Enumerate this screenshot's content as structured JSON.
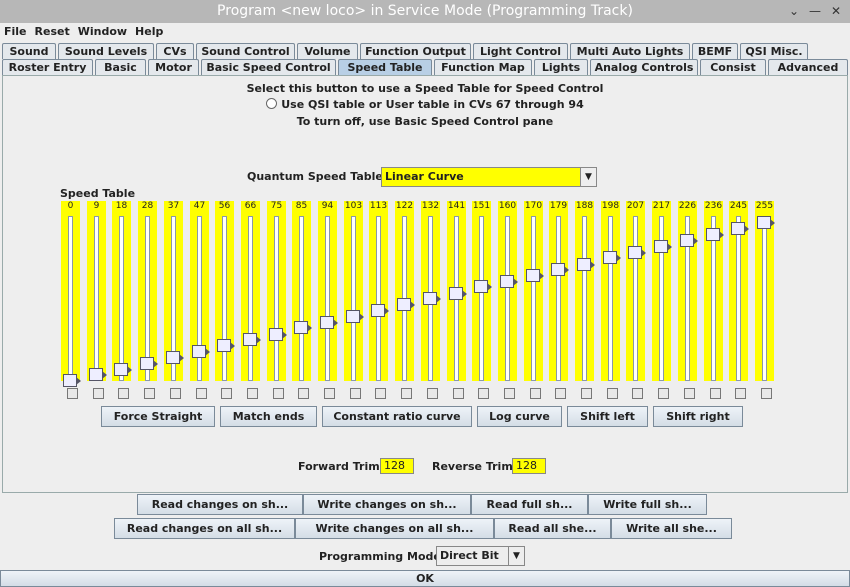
{
  "window": {
    "title": "Program <new loco> in Service Mode (Programming Track)"
  },
  "menu": [
    "File",
    "Reset",
    "Window",
    "Help"
  ],
  "tabs_row1": [
    "Sound",
    "Sound Levels",
    "CVs",
    "Sound Control",
    "Volume",
    "Function Output",
    "Light Control",
    "Multi Auto Lights",
    "BEMF",
    "QSI Misc."
  ],
  "tabs_row2": [
    "Roster Entry",
    "Basic",
    "Motor",
    "Basic Speed Control",
    "Speed Table",
    "Function Map",
    "Lights",
    "Analog Controls",
    "Consist",
    "Advanced"
  ],
  "speed_pane": {
    "instruction": "Select this button to use a Speed Table for Speed Control",
    "radio_label": "Use QSI table or User table in CVs 67 through 94",
    "turn_off_note": "To turn off, use Basic Speed Control pane",
    "quantum_label": "Quantum Speed Table",
    "quantum_value": "Linear Curve",
    "speed_table_label": "Speed Table",
    "values": [
      0,
      9,
      18,
      28,
      37,
      47,
      56,
      66,
      75,
      85,
      94,
      103,
      113,
      122,
      132,
      141,
      151,
      160,
      170,
      179,
      188,
      198,
      207,
      217,
      226,
      236,
      245,
      255
    ],
    "buttons": {
      "force_straight": "Force Straight",
      "match_ends": "Match ends",
      "constant_ratio": "Constant ratio curve",
      "log_curve": "Log curve",
      "shift_left": "Shift left",
      "shift_right": "Shift right"
    },
    "forward_trim_label": "Forward Trim",
    "forward_trim_value": "128",
    "reverse_trim_label": "Reverse Trim",
    "reverse_trim_value": "128"
  },
  "bottom": {
    "read_sheet": "Read changes on sh...",
    "write_sheet": "Write changes on sh...",
    "read_full": "Read full sh...",
    "write_full": "Write full sh...",
    "read_all_changes": "Read changes on all sh...",
    "write_all_changes": "Write changes on all sh...",
    "read_all": "Read all she...",
    "write_all": "Write all she...",
    "prog_mode_label": "Programming Mode",
    "prog_mode_value": "Direct Bit",
    "ok": "OK"
  },
  "colors": {
    "highlight": "#ffff00",
    "selected_tab": "#b8cfe5"
  }
}
